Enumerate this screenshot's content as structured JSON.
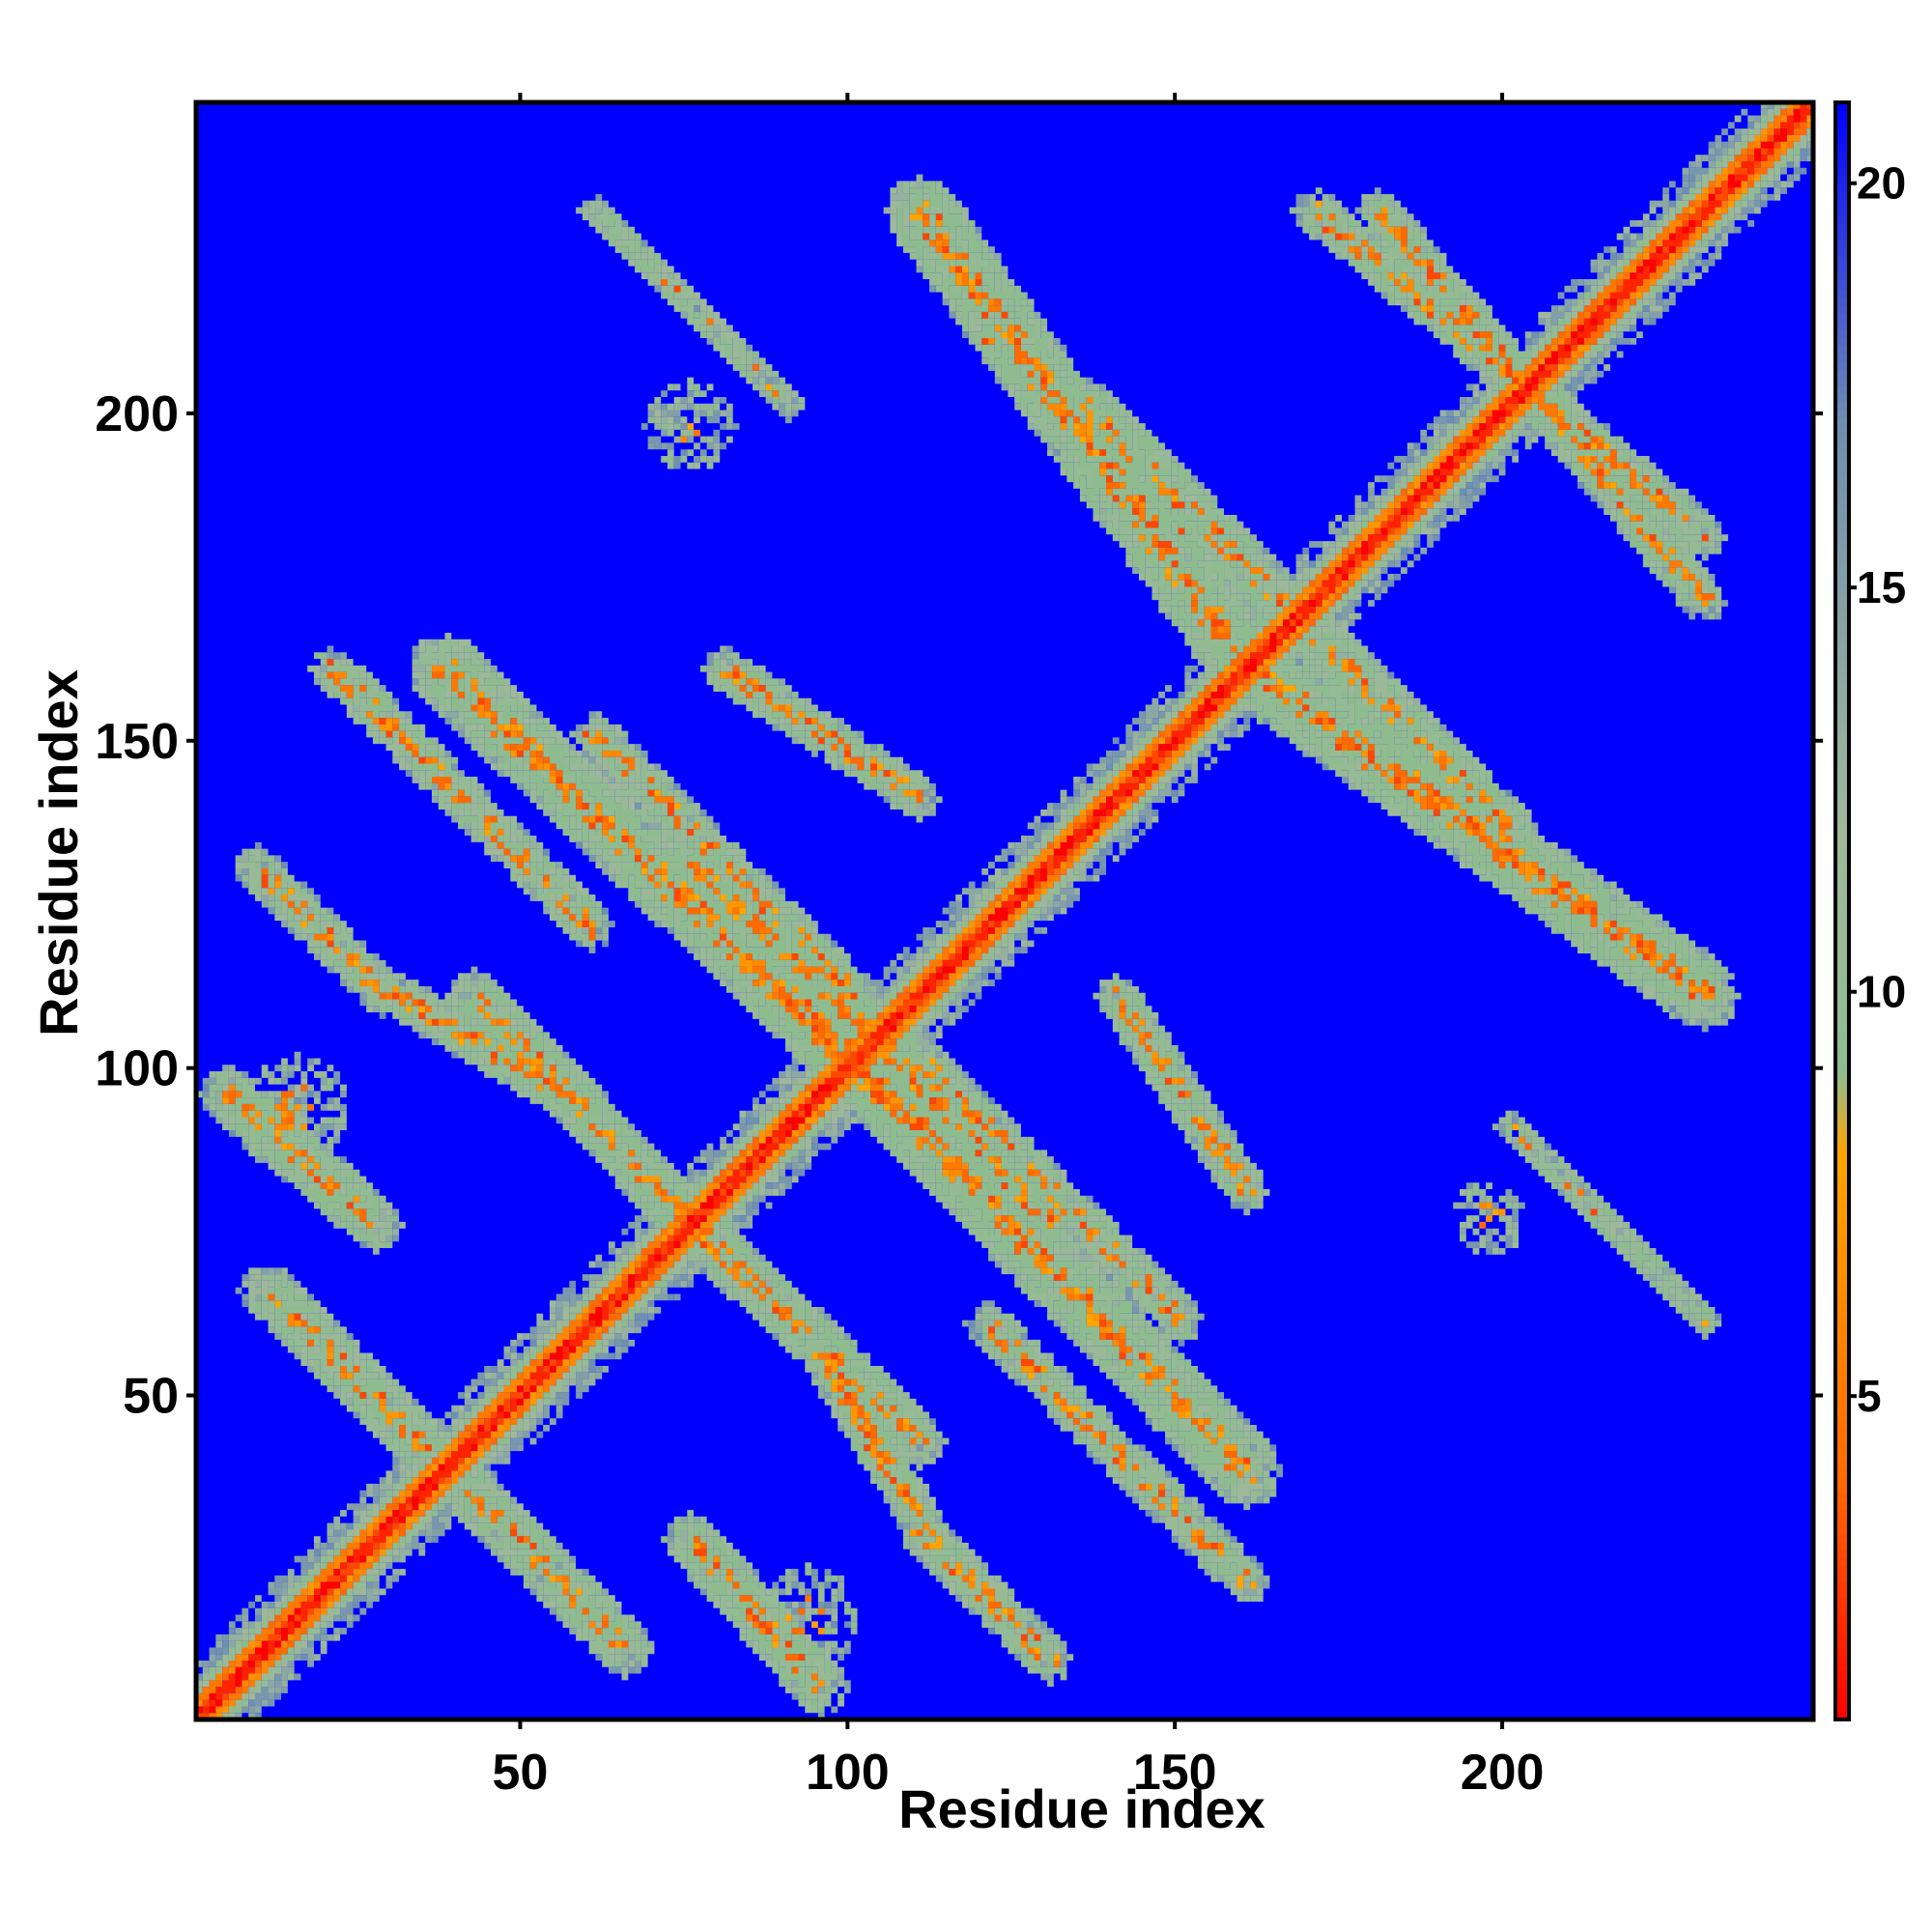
{
  "chart_data": {
    "type": "heatmap",
    "title": "",
    "xlabel": "Residue index",
    "ylabel": "Residue index",
    "xlim": [
      1,
      247
    ],
    "ylim": [
      1,
      247
    ],
    "x_ticks": [
      50,
      100,
      150,
      200
    ],
    "y_ticks": [
      50,
      100,
      150,
      200
    ],
    "x_tick_labels": [
      "50",
      "100",
      "150",
      "200"
    ],
    "y_tick_labels": [
      "50",
      "100",
      "150",
      "200"
    ],
    "colorbar": {
      "range": [
        1,
        21
      ],
      "ticks": [
        5,
        10,
        15,
        20
      ],
      "tick_labels": [
        "5",
        "10",
        "15",
        "20"
      ],
      "colors": [
        {
          "value": 1,
          "color": "#ff0000"
        },
        {
          "value": 4,
          "color": "#ff6a00"
        },
        {
          "value": 8,
          "color": "#ffa500"
        },
        {
          "value": 9,
          "color": "#8fbc8f"
        },
        {
          "value": 12,
          "color": "#9fb89a"
        },
        {
          "value": 17,
          "color": "#6f8fb0"
        },
        {
          "value": 21,
          "color": "#0000ff"
        }
      ]
    },
    "background_value": 21,
    "features": [
      {
        "kind": "diagonal",
        "description": "self-contacts",
        "min_distance": 1
      },
      {
        "kind": "anti-parallel-band",
        "x_range": [
          1,
          28
        ],
        "y_range": [
          20,
          60
        ]
      },
      {
        "kind": "anti-parallel-band",
        "x_range": [
          35,
          110
        ],
        "y_range": [
          20,
          160
        ]
      },
      {
        "kind": "anti-parallel-band",
        "x_range": [
          75,
          165
        ],
        "y_range": [
          25,
          130
        ]
      },
      {
        "kind": "anti-parallel-band",
        "x_range": [
          110,
          220
        ],
        "y_range": [
          130,
          235
        ]
      },
      {
        "kind": "anti-parallel-band",
        "x_range": [
          170,
          232
        ],
        "y_range": [
          105,
          205
        ]
      },
      {
        "kind": "blob",
        "center": [
          75,
          197
        ]
      },
      {
        "kind": "blob",
        "center": [
          93,
          15
        ]
      },
      {
        "kind": "blob",
        "center": [
          12,
          90
        ]
      },
      {
        "kind": "blob",
        "center": [
          197,
          76
        ]
      }
    ]
  },
  "colors": {
    "background": "#0000ff",
    "frame": "#000000"
  }
}
